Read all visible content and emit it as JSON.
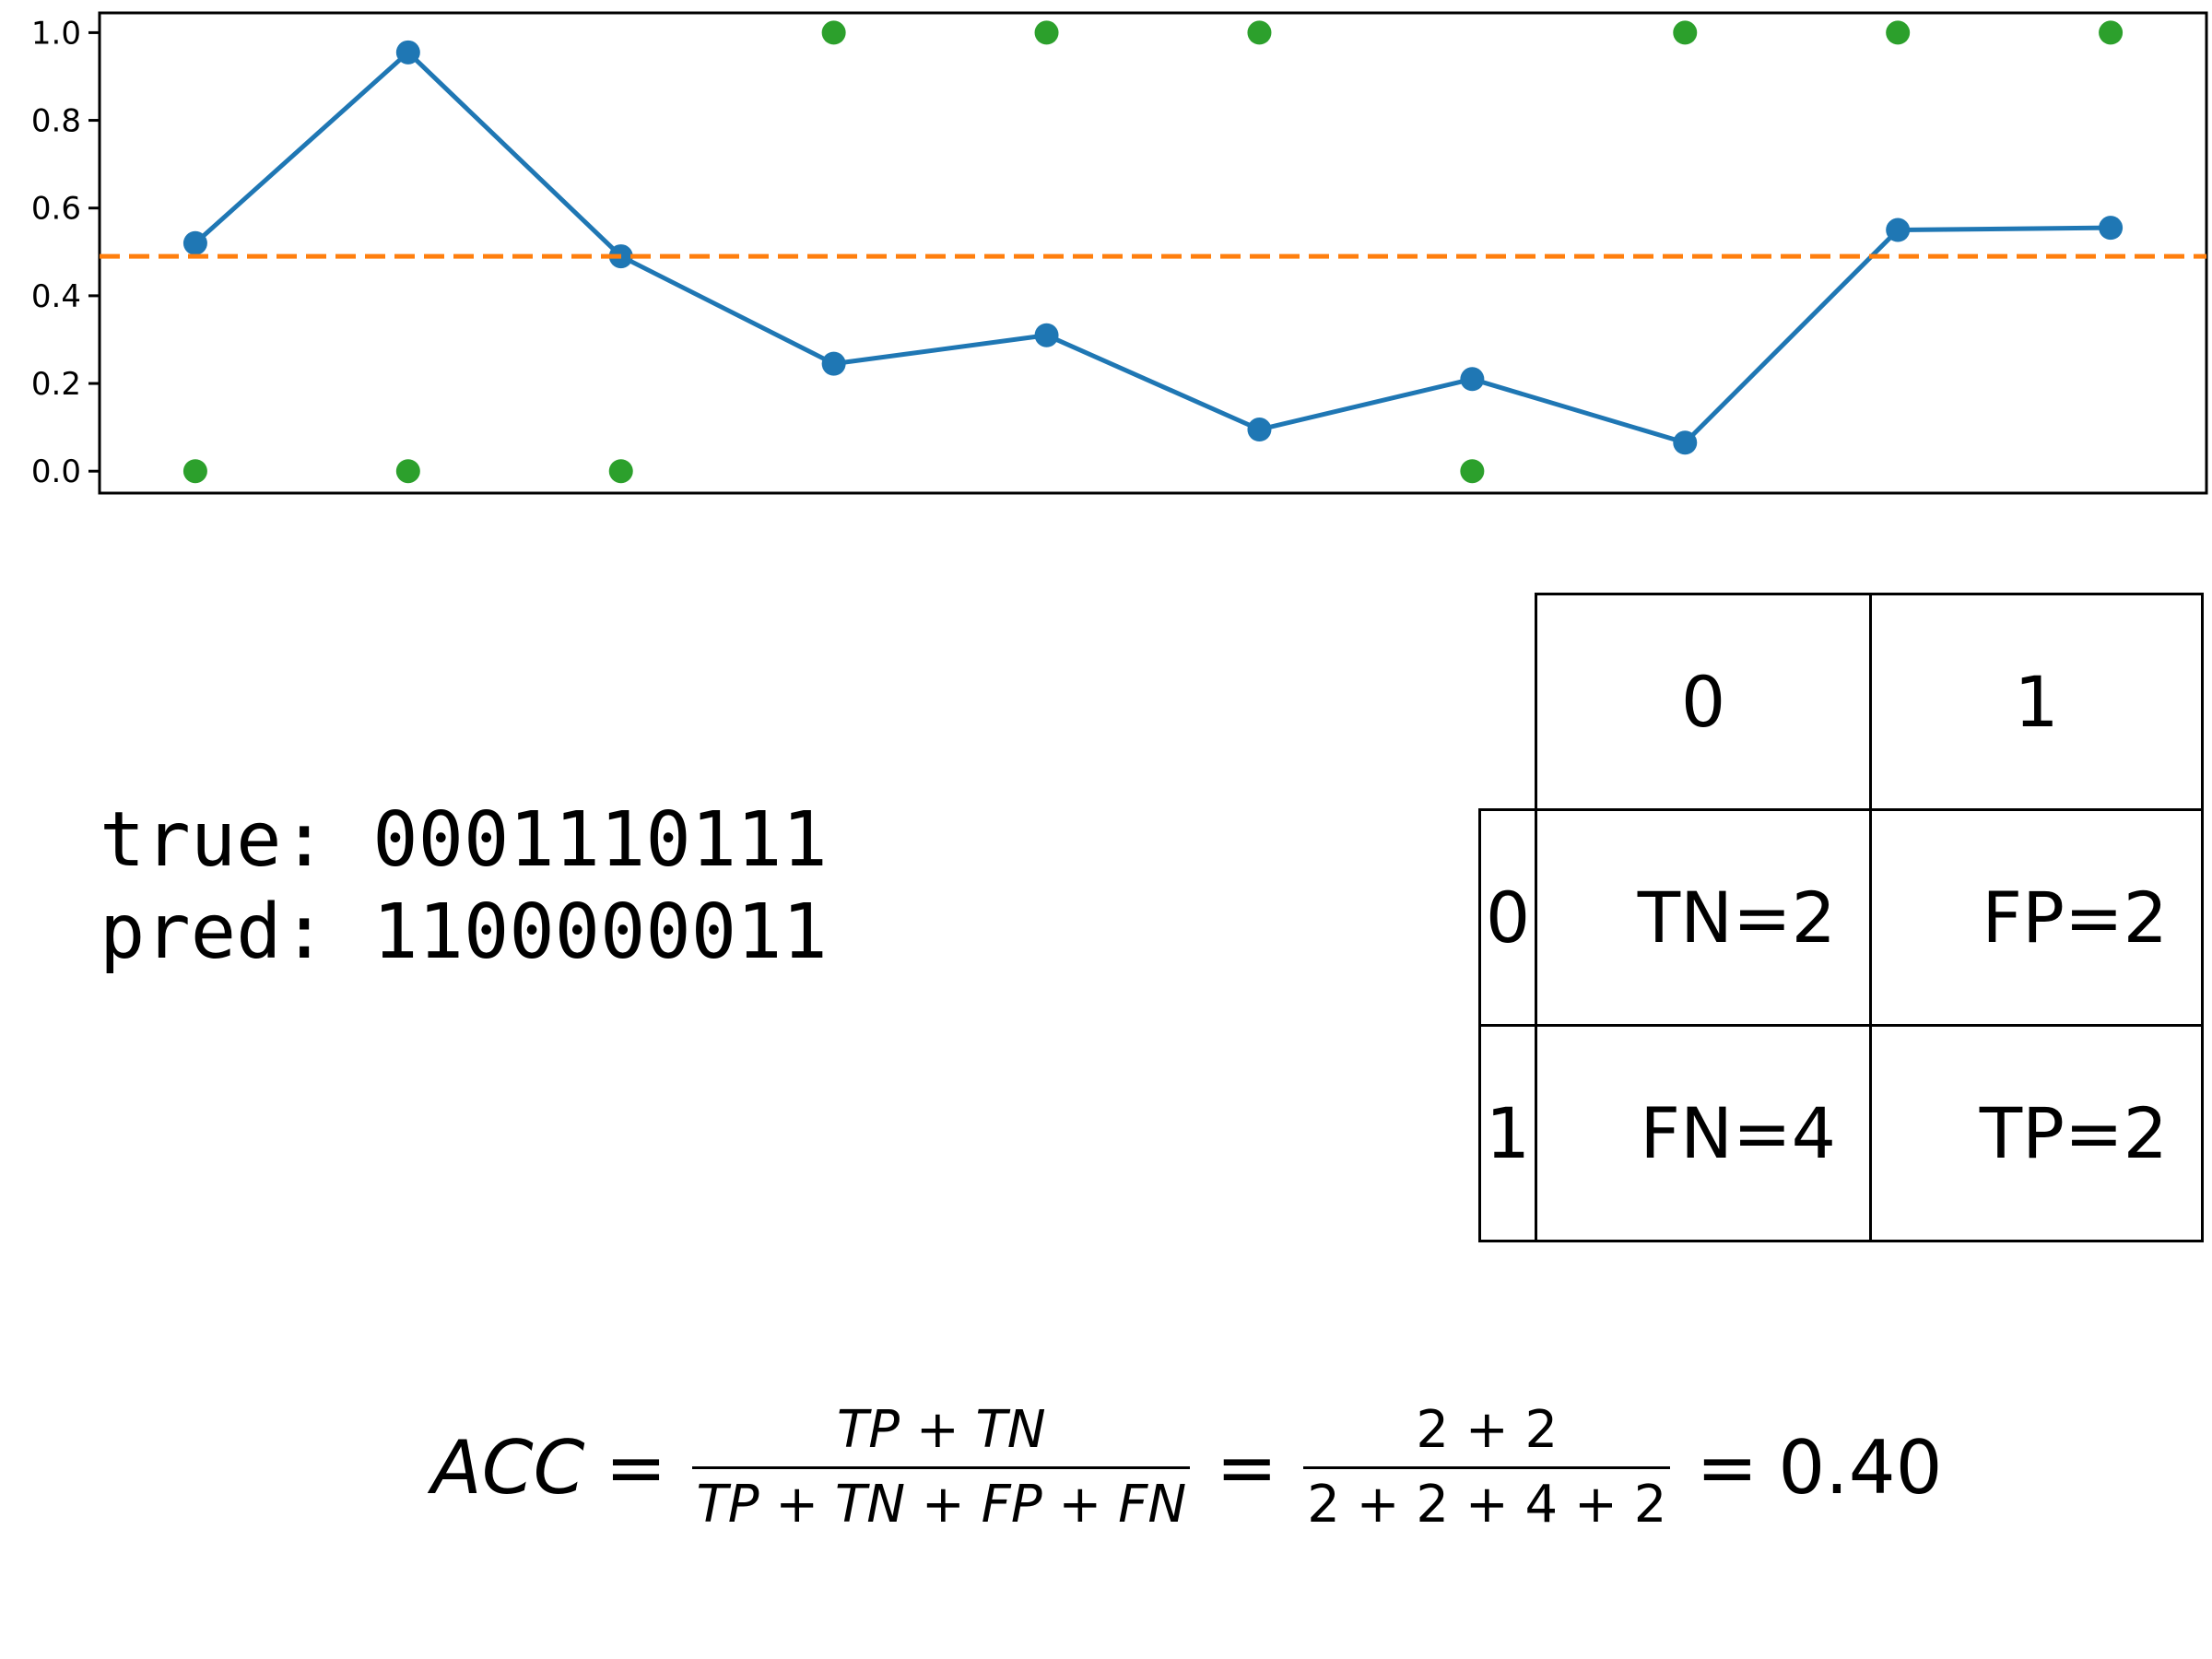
{
  "chart_data": {
    "type": "line",
    "title": "",
    "xlabel": "",
    "ylabel": "",
    "x": [
      0,
      1,
      2,
      3,
      4,
      5,
      6,
      7,
      8,
      9
    ],
    "xlim": [
      -0.45,
      9.45
    ],
    "ylim": [
      -0.05,
      1.045
    ],
    "yticks": [
      "0.0",
      "0.2",
      "0.4",
      "0.6",
      "0.8",
      "1.0"
    ],
    "x_ticks_visible": false,
    "grid": false,
    "legend": "none",
    "threshold": 0.49,
    "series": [
      {
        "kind": "line+markers",
        "color": "#1f77b4",
        "values": [
          0.52,
          0.955,
          0.49,
          0.245,
          0.31,
          0.095,
          0.21,
          0.065,
          0.55,
          0.555
        ]
      },
      {
        "kind": "markers",
        "color": "#2ca02c",
        "values": [
          0,
          0,
          0,
          1,
          1,
          1,
          0,
          1,
          1,
          1
        ]
      },
      {
        "kind": "hline-dashed",
        "color": "#ff7f0e",
        "value": 0.49
      }
    ]
  },
  "sequences": {
    "true_line": "true: 0001110111",
    "pred_line": "pred: 1100000011"
  },
  "confusion_matrix": {
    "col_headers": [
      "0",
      "1"
    ],
    "row_headers": [
      "0",
      "1"
    ],
    "cells": [
      [
        "TN=2",
        "FP=2"
      ],
      [
        "FN=4",
        "TP=2"
      ]
    ]
  },
  "formula": {
    "lhs": "ACC",
    "eq": "=",
    "num1": "TP + TN",
    "den1": "TP + TN + FP + FN",
    "num2": "2 + 2",
    "den2": "2 + 2 + 4 + 2",
    "result": "0.40"
  }
}
